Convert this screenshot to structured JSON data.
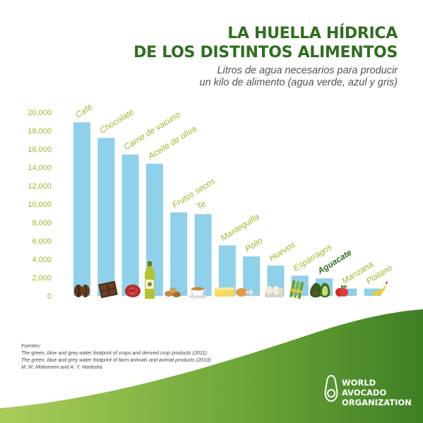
{
  "title": {
    "line1": "LA HUELLA HÍDRICA",
    "line2": "DE LOS DISTINTOS ALIMENTOS"
  },
  "subtitle": {
    "line1": "Litros de agua necesarios para producir",
    "line2": "un kilo de alimento (agua verde, azul y gris)"
  },
  "chart_data": {
    "type": "bar",
    "categories": [
      "Café",
      "Chocolate",
      "Carne de vacuno",
      "Aceite de oliva",
      "Frutos secos",
      "Te",
      "Mantequilla",
      "Pollo",
      "Huevos",
      "Espárragos",
      "Aguacate",
      "Manzana",
      "Platano"
    ],
    "values": [
      18900,
      17200,
      15400,
      14400,
      9100,
      8900,
      5500,
      4300,
      3300,
      2200,
      1900,
      800,
      800
    ],
    "highlight": "Aguacate",
    "ylim": [
      0,
      20000
    ],
    "yticks": [
      "0",
      "2,000",
      "4,000",
      "6,000",
      "8,000",
      "10,000",
      "12,000",
      "14,000",
      "16,000",
      "18,000",
      "20,000"
    ],
    "grid": false,
    "legend": "none"
  },
  "icons": [
    "coffee-beans-icon",
    "chocolate-icon",
    "beef-steak-icon",
    "olive-oil-bottle-icon",
    "nuts-icon",
    "tea-cup-icon",
    "butter-icon",
    "chicken-leg-icon",
    "eggs-icon",
    "asparagus-icon",
    "avocado-icon",
    "apple-icon",
    "banana-icon"
  ],
  "colors": {
    "bar": "#8fd0ea",
    "label": "#a3b52b",
    "highlight_label": "#2f6e1f",
    "title": "#2f6e1f",
    "wave": "#5b9a31",
    "axis_tick": "#a3b52b"
  },
  "sources": {
    "heading": "Fuentes:",
    "line1": "The green, blue and grey water footprint of crops and derived crop products (2011)",
    "line2": "The green, blue and grey water footprint of farm animals and animal products  (2010)",
    "line3": "M. M. Mekonnen and A. Y. Hoekstra"
  },
  "organization": {
    "line1": "WORLD",
    "line2": "AVOCADO",
    "line3": "ORGANIZATION"
  }
}
